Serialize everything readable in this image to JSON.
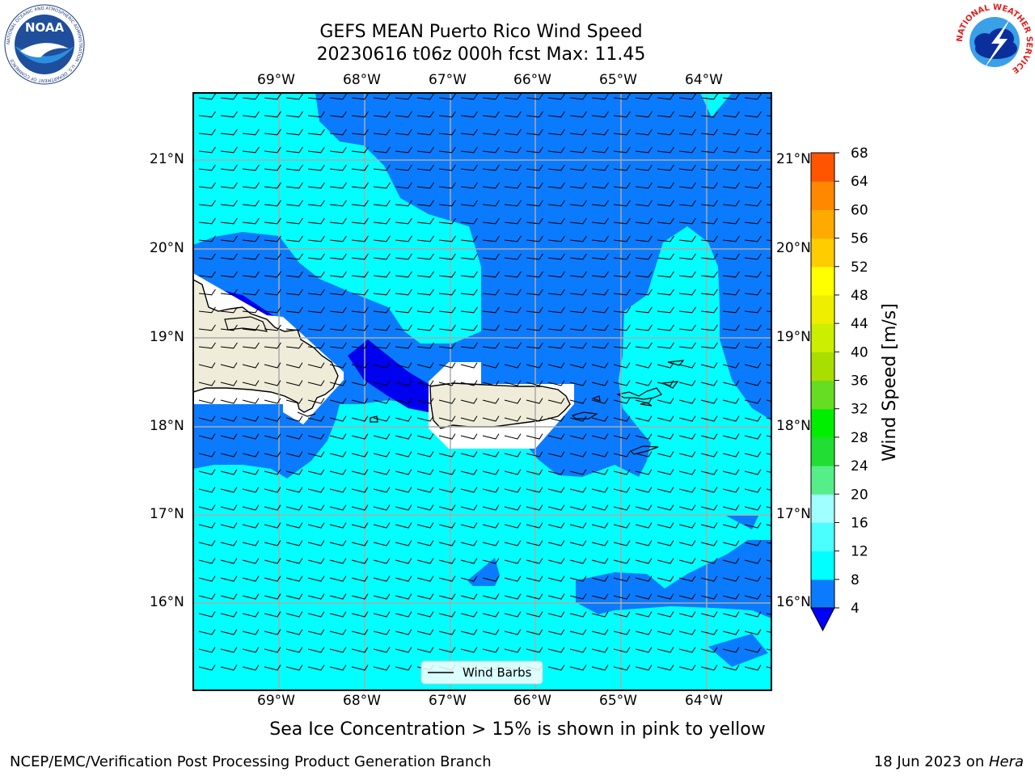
{
  "title": {
    "line1": "GEFS MEAN Puerto Rico Wind Speed",
    "line2": "20230616 t06z 000h fcst   Max: 11.45"
  },
  "map": {
    "lon_labels": [
      "69°W",
      "68°W",
      "67°W",
      "66°W",
      "65°W",
      "64°W"
    ],
    "lat_labels": [
      "21°N",
      "20°N",
      "19°N",
      "18°N",
      "17°N",
      "16°N"
    ],
    "legend_label": "Wind Barbs",
    "field_colors": {
      "4_8": "#0a7bff",
      "8_12": "#00ffff",
      "0_4": "#0000f0",
      "land": "#efedd9",
      "masked": "#ffffff"
    }
  },
  "colorbar": {
    "label": "Wind Speed [m/s]",
    "ticks": [
      "4",
      "8",
      "12",
      "16",
      "20",
      "24",
      "28",
      "32",
      "36",
      "40",
      "44",
      "48",
      "52",
      "56",
      "60",
      "64",
      "68"
    ],
    "colors": [
      "#0a7bff",
      "#00ffff",
      "#4bffff",
      "#a0ffff",
      "#55ee88",
      "#22dd33",
      "#00ee00",
      "#66dd22",
      "#aadd00",
      "#ccee00",
      "#eeee00",
      "#ffff00",
      "#ffcc00",
      "#ffaa00",
      "#ff8800",
      "#ff5500",
      "#ff2200",
      "#ff0000"
    ],
    "extend_color": "#0000ff"
  },
  "footer": {
    "note": "Sea Ice Concentration > 15% is shown in pink to yellow",
    "left": "NCEP/EMC/Verification Post Processing Product Generation Branch",
    "date": "18 Jun 2023 on ",
    "machine": "Hera"
  },
  "logos": {
    "noaa_text": "NOAA",
    "noaa_ring": "NATIONAL OCEANIC AND ATMOSPHERIC ADMINISTRATION · U.S. DEPARTMENT OF COMMERCE",
    "nws_ring": "NATIONAL WEATHER SERVICE"
  }
}
